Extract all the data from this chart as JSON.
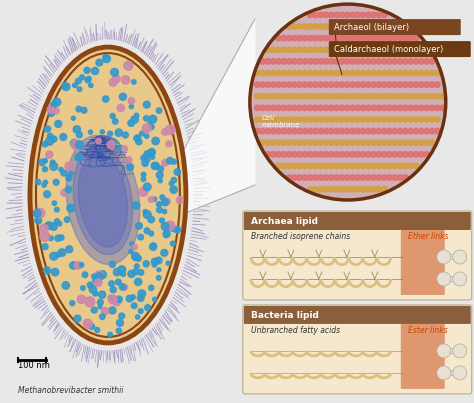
{
  "background_color": "#e8e8e8",
  "cell_body_color": "#e8c98a",
  "cell_border_color": "#8B4513",
  "cell_inner_border": "#a0521a",
  "pili_color": "#9988bb",
  "nucleoid_color_1": "#3355aa",
  "nucleoid_color_2": "#4466cc",
  "ribosome_blue": "#3399cc",
  "ribosome_pink": "#cc88aa",
  "scale_bar_label": "100 nm",
  "organism_name": "Methanobrevibacter smithii",
  "archaeol_label": "Archaeol (bilayer)",
  "caldarchaeol_label": "Caldarchaeol (monolayer)",
  "cell_membrane_label": "Cell\nmembrane",
  "archaea_lipid_title": "Archaea lipid",
  "archaea_chain_label": "Branched isoprene chains",
  "archaea_link_label": "Ether links",
  "bacteria_lipid_title": "Bacteria lipid",
  "bacteria_chain_label": "Unbranched fatty acids",
  "bacteria_link_label": "Ester links",
  "panel_bg_color": "#f5e8cc",
  "panel_title_bg": "#8B5e3c",
  "panel_title_color": "#ffffff",
  "label_box_color": "#7a4520",
  "archaeol_color": "#e07070",
  "caldarchaeol_color": "#d4a040",
  "lipid_bump_color": "#ddc080",
  "link_orange": "#cc5522",
  "zoom_bg": "#d0b0b8",
  "zoom_border": "#6B3010",
  "connector_color": "#aaaaaa"
}
